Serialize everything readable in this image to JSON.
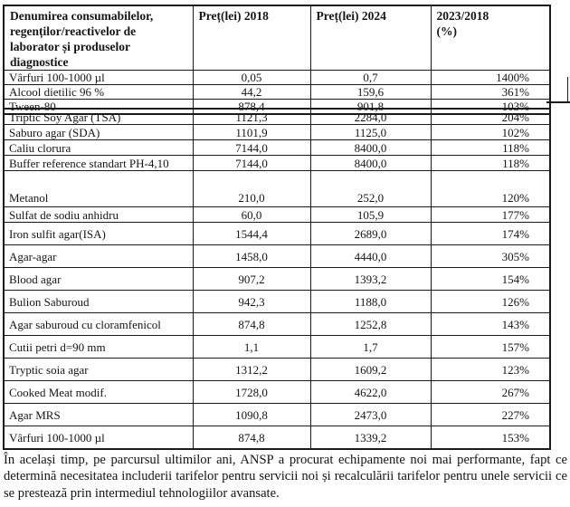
{
  "table_top": {
    "headers": {
      "name": "Denumirea consumabilelor,\nregenților/reactivelor de\nlaborator și produselor\ndiagnostice",
      "price_2018": "Preț(lei) 2018",
      "price_2024": "Preț(lei) 2024",
      "ratio": "2023/2018\n(%)"
    },
    "rows": [
      {
        "name": "Vârfuri 100-1000 µl",
        "price_2018": "0,05",
        "price_2024": "0,7",
        "ratio": "1400%"
      },
      {
        "name": "Alcool dietilic 96 %",
        "price_2018": "44,2",
        "price_2024": "159,6",
        "ratio": "361%"
      },
      {
        "name": "Tween-80",
        "price_2018": "878,4",
        "price_2024": "901,8",
        "ratio": "103%"
      }
    ]
  },
  "table_main": {
    "rows": [
      {
        "name": "Triptic Soy Agar (TSA)",
        "price_2018": "1121,3",
        "price_2024": "2284,0",
        "ratio": "204%"
      },
      {
        "name": "Saburo agar (SDA)",
        "price_2018": "1101,9",
        "price_2024": "1125,0",
        "ratio": "102%"
      },
      {
        "name": "Caliu clorura",
        "price_2018": "7144,0",
        "price_2024": "8400,0",
        "ratio": "118%"
      },
      {
        "name": "Buffer reference standart PH-4,10",
        "price_2018": "7144,0",
        "price_2024": "8400,0",
        "ratio": "118%"
      },
      {
        "name": "Metanol",
        "price_2018": "210,0",
        "price_2024": "252,0",
        "ratio": "120%"
      },
      {
        "name": "Sulfat de sodiu anhidru",
        "price_2018": "60,0",
        "price_2024": "105,9",
        "ratio": "177%"
      },
      {
        "name": "Iron sulfit agar(ISA)",
        "price_2018": "1544,4",
        "price_2024": "2689,0",
        "ratio": "174%"
      },
      {
        "name": "Agar-agar",
        "price_2018": "1458,0",
        "price_2024": "4440,0",
        "ratio": "305%"
      },
      {
        "name": "Blood agar",
        "price_2018": "907,2",
        "price_2024": "1393,2",
        "ratio": "154%"
      },
      {
        "name": "Bulion Saburoud",
        "price_2018": "942,3",
        "price_2024": "1188,0",
        "ratio": "126%"
      },
      {
        "name": "Agar saburoud cu cloramfenicol",
        "price_2018": "874,8",
        "price_2024": "1252,8",
        "ratio": "143%"
      },
      {
        "name": "Cutii petri d=90 mm",
        "price_2018": "1,1",
        "price_2024": "1,7",
        "ratio": "157%"
      },
      {
        "name": "Tryptic soia agar",
        "price_2018": "1312,2",
        "price_2024": "1609,2",
        "ratio": "123%"
      },
      {
        "name": "Cooked Meat modif.",
        "price_2018": "1728,0",
        "price_2024": "4622,0",
        "ratio": "267%"
      },
      {
        "name": "Agar MRS",
        "price_2018": "1090,8",
        "price_2024": "2473,0",
        "ratio": "227%"
      },
      {
        "name": "Vârfuri 100-1000 µl",
        "price_2018": "874,8",
        "price_2024": "1339,2",
        "ratio": "153%"
      }
    ]
  },
  "paragraph": "În același timp, pe parcursul ultimilor ani, ANSP a procurat echipamente noi mai performante, fapt ce determină necesitatea includerii tarifelor pentru servicii noi și recalculării tarifelor pentru unele servicii ce se prestează prin intermediul tehnologiilor avansate."
}
